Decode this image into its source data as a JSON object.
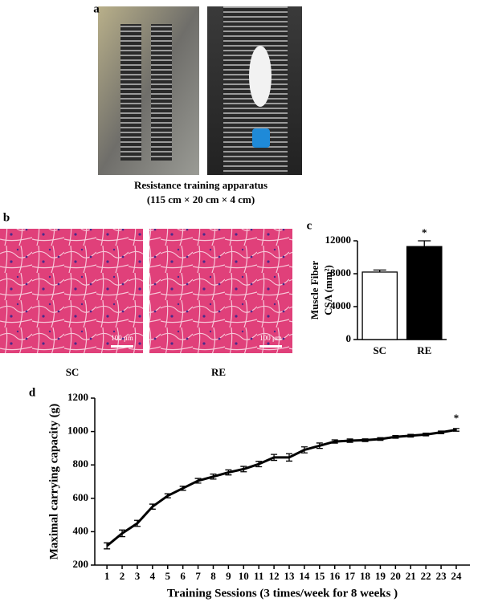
{
  "figure": {
    "panel_labels": [
      "a",
      "b",
      "c",
      "d"
    ],
    "caption_a": [
      "Resistance training apparatus",
      "(115 cm × 20 cm × 4 cm)"
    ],
    "scale_bar": "100 μm",
    "image_labels": [
      "SC",
      "RE"
    ]
  },
  "chart_data": [
    {
      "type": "bar",
      "ylabel": [
        "Muscle Fiber",
        "CSA (mm²)"
      ],
      "categories": [
        "SC",
        "RE"
      ],
      "values": [
        8200,
        11300
      ],
      "errors": [
        250,
        700
      ],
      "colors": [
        "#ffffff",
        "#000000"
      ],
      "ylim": [
        0,
        12000
      ],
      "yticks": [
        0,
        4000,
        8000,
        12000
      ],
      "annotations": [
        {
          "text": "*",
          "x": "RE"
        }
      ]
    },
    {
      "type": "line",
      "xlabel": "Training Sessions (3 times/week for 8 weeks )",
      "ylabel": "Maximal  carrying  capacity  (g)",
      "x": [
        1,
        2,
        3,
        4,
        5,
        6,
        7,
        8,
        9,
        10,
        11,
        12,
        13,
        14,
        15,
        16,
        17,
        18,
        19,
        20,
        21,
        22,
        23,
        24
      ],
      "series": [
        {
          "color": "#000000",
          "values": [
            315,
            390,
            450,
            550,
            615,
            660,
            705,
            730,
            755,
            775,
            805,
            845,
            845,
            890,
            915,
            940,
            945,
            948,
            955,
            968,
            975,
            982,
            995,
            1010
          ],
          "errors": [
            18,
            20,
            18,
            15,
            12,
            12,
            14,
            15,
            15,
            16,
            16,
            18,
            22,
            18,
            16,
            10,
            10,
            8,
            8,
            8,
            8,
            8,
            8,
            8
          ]
        }
      ],
      "xlim": [
        0.2,
        24.9
      ],
      "ylim": [
        200,
        1200
      ],
      "xticks": [
        1,
        2,
        3,
        4,
        5,
        6,
        7,
        8,
        9,
        10,
        11,
        12,
        13,
        14,
        15,
        16,
        17,
        18,
        19,
        20,
        21,
        22,
        23,
        24
      ],
      "yticks": [
        200,
        400,
        600,
        800,
        1000,
        1200
      ],
      "annotations": [
        {
          "text": "*",
          "x": 24
        }
      ]
    }
  ]
}
